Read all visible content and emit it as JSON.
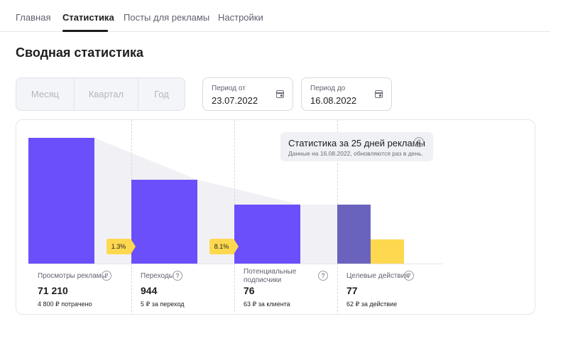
{
  "tabs": [
    {
      "label": "Главная"
    },
    {
      "label": "Статистика"
    },
    {
      "label": "Посты для рекламы"
    },
    {
      "label": "Настройки"
    }
  ],
  "page_title": "Сводная статистика",
  "period_toggle": {
    "options": [
      "Месяц",
      "Квартал",
      "Год"
    ]
  },
  "date_from": {
    "label": "Период от",
    "value": "23.07.2022"
  },
  "date_to": {
    "label": "Период до",
    "value": "16.08.2022"
  },
  "info": {
    "title": "Статистика за 25 дней рекламы",
    "subtitle": "Данные на 16.08.2022, обновляются раз в день."
  },
  "funnel": {
    "stages": [
      {
        "label": "Просмотры рекламы",
        "value": "71 210",
        "note": "4 800 ₽ потрачено"
      },
      {
        "label": "Переходы",
        "value": "944",
        "note": "5 ₽ за переход"
      },
      {
        "label": "Потенциальные подписчики",
        "value": "76",
        "note": "63 ₽ за клиента"
      },
      {
        "label": "Целевые действия",
        "value": "77",
        "note": "62 ₽ за действие"
      }
    ],
    "conversions": [
      "1.3%",
      "8.1%"
    ]
  },
  "colors": {
    "primary_bar": "#6a4ffb",
    "target_bar": "#6a63bd",
    "highlight": "#fed84f",
    "connector": "#f1f1f5"
  }
}
